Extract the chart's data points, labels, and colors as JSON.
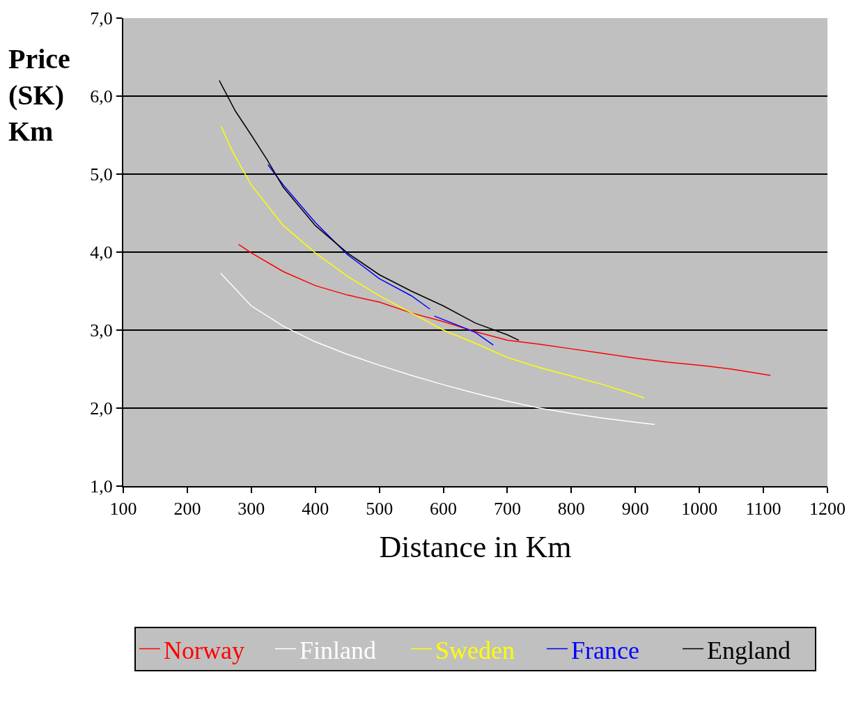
{
  "chart_data": {
    "type": "line",
    "xlabel": "Distance in Km",
    "ylabel": "Price (SK) Km",
    "xlim": [
      100,
      1200
    ],
    "xticks": [
      100,
      200,
      300,
      400,
      500,
      600,
      700,
      800,
      900,
      1000,
      1100,
      1200
    ],
    "ylim": [
      1,
      7
    ],
    "yticks": [
      {
        "value": 1,
        "label": "1,0"
      },
      {
        "value": 2,
        "label": "2,0"
      },
      {
        "value": 3,
        "label": "3,0"
      },
      {
        "value": 4,
        "label": "4,0"
      },
      {
        "value": 5,
        "label": "5,0"
      },
      {
        "value": 6,
        "label": "6,0"
      },
      {
        "value": 7,
        "label": "7,0"
      }
    ],
    "grid": "y",
    "legend": "bottom",
    "marker": "none",
    "line_style": "solid",
    "series": [
      {
        "name": "Norway",
        "color": "#ff0000",
        "x": [
          280,
          300,
          350,
          400,
          450,
          500,
          550,
          600,
          650,
          700,
          750,
          800,
          850,
          900,
          950,
          1000,
          1050,
          1111
        ],
        "values": [
          4.1,
          3.99,
          3.75,
          3.57,
          3.45,
          3.36,
          3.22,
          3.11,
          2.98,
          2.87,
          2.82,
          2.76,
          2.7,
          2.64,
          2.59,
          2.55,
          2.5,
          2.42
        ]
      },
      {
        "name": "Finland",
        "color": "#ffffff",
        "x": [
          252,
          300,
          350,
          400,
          450,
          500,
          550,
          600,
          650,
          700,
          750,
          800,
          850,
          900,
          930
        ],
        "values": [
          3.73,
          3.31,
          3.05,
          2.85,
          2.69,
          2.55,
          2.42,
          2.3,
          2.19,
          2.09,
          2.0,
          1.93,
          1.87,
          1.82,
          1.79
        ]
      },
      {
        "name": "Sweden",
        "color": "#ffff00",
        "x": [
          253,
          270,
          300,
          350,
          400,
          450,
          500,
          550,
          600,
          650,
          700,
          750,
          800,
          850,
          900,
          914
        ],
        "values": [
          5.61,
          5.3,
          4.86,
          4.34,
          3.99,
          3.69,
          3.44,
          3.22,
          3.0,
          2.83,
          2.65,
          2.52,
          2.41,
          2.3,
          2.17,
          2.13
        ]
      },
      {
        "name": "France",
        "color": "#0000ff",
        "x": [
          326,
          350,
          400,
          450,
          500,
          550,
          579,
          583,
          586,
          620,
          650,
          678
        ],
        "values": [
          5.12,
          4.86,
          4.38,
          3.97,
          3.66,
          3.44,
          3.27,
          null,
          3.18,
          3.07,
          2.97,
          2.81
        ]
      },
      {
        "name": "England",
        "color": "#000000",
        "x": [
          250,
          275,
          300,
          325,
          350,
          400,
          450,
          500,
          550,
          600,
          650,
          700,
          718
        ],
        "values": [
          6.2,
          5.81,
          5.5,
          5.18,
          4.83,
          4.34,
          3.99,
          3.71,
          3.5,
          3.31,
          3.09,
          2.94,
          2.87
        ]
      }
    ]
  }
}
